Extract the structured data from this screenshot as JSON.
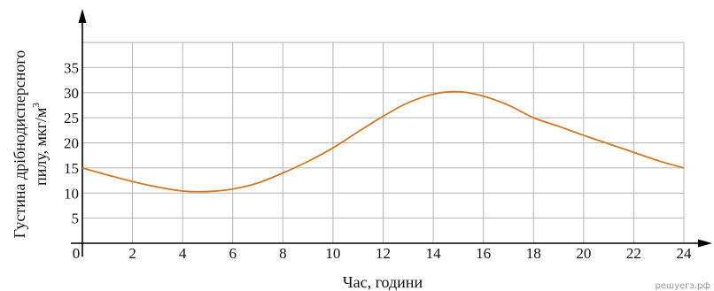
{
  "chart_data": {
    "type": "line",
    "xlabel": "Час, години",
    "ylabel_line1": "Густина дрібнодисперсного",
    "ylabel_line2": "пилу, мкг/м",
    "ylabel_superscript": "3",
    "origin_label": "0",
    "xlim": [
      0,
      24
    ],
    "ylim": [
      0,
      40
    ],
    "x_ticks": [
      "2",
      "4",
      "6",
      "8",
      "10",
      "12",
      "14",
      "16",
      "18",
      "20",
      "22",
      "24"
    ],
    "y_ticks": [
      "5",
      "10",
      "15",
      "20",
      "25",
      "30",
      "35"
    ],
    "grid": true,
    "line_color": "#d17a22",
    "series": [
      {
        "x": [
          0,
          1,
          2,
          3,
          4,
          5,
          6,
          7,
          8,
          9,
          10,
          11,
          12,
          13,
          14,
          15,
          16,
          17,
          18,
          19,
          20,
          21,
          22,
          23,
          24
        ],
        "y": [
          15,
          13.6,
          12.3,
          11.2,
          10.4,
          10.3,
          10.8,
          12,
          14,
          16.3,
          19,
          22.2,
          25.3,
          28,
          29.7,
          30.2,
          29.3,
          27.5,
          25,
          23.3,
          21.5,
          19.8,
          18.1,
          16.4,
          15
        ]
      }
    ]
  },
  "watermark": "решуегэ.рф"
}
